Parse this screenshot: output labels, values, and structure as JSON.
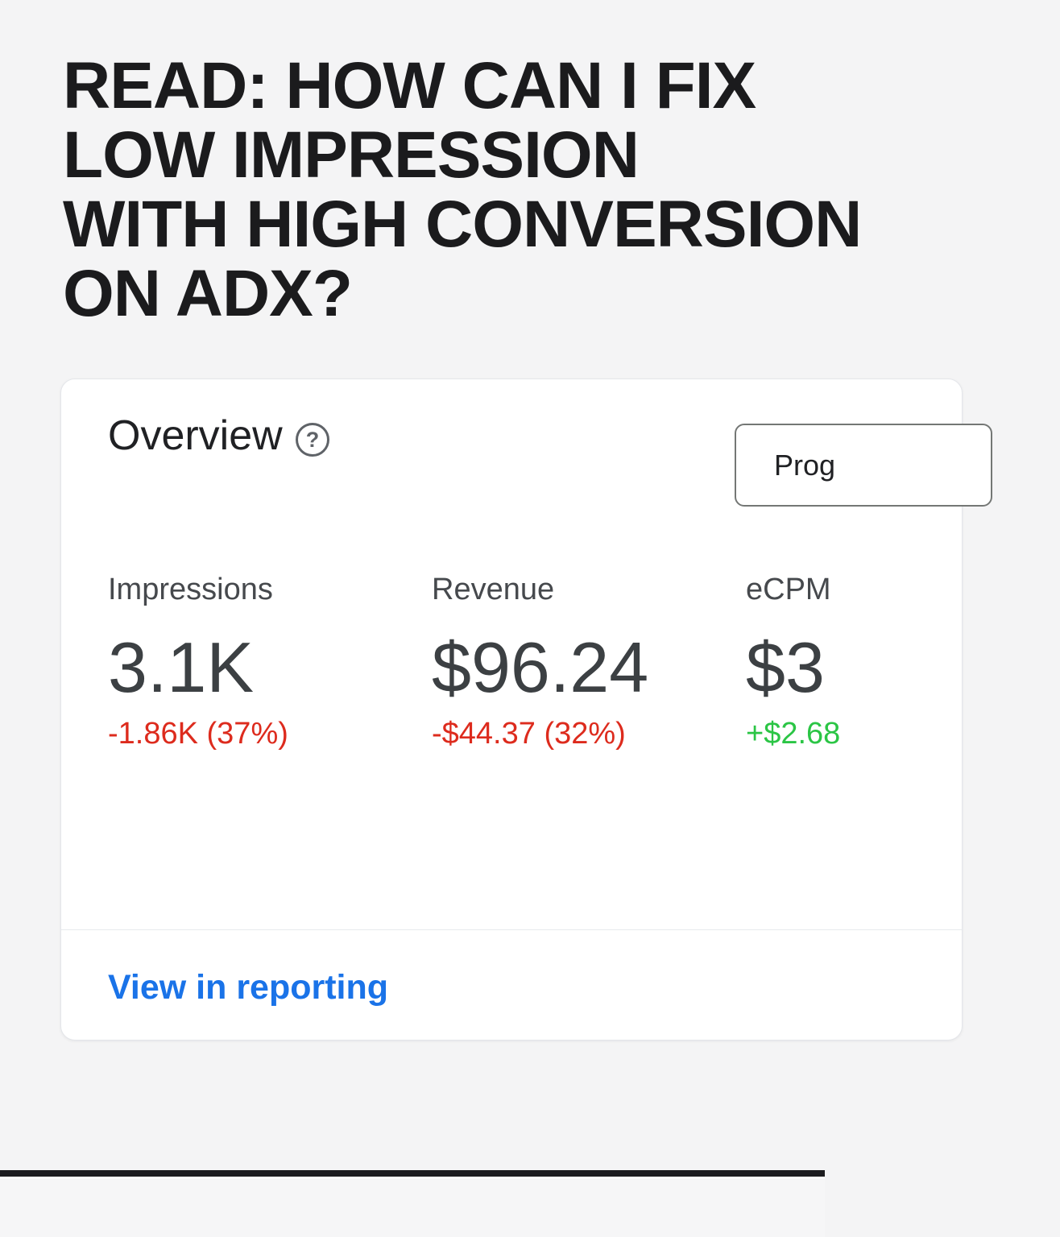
{
  "title": {
    "lines": [
      "READ: HOW CAN I FIX",
      "LOW IMPRESSION",
      "WITH HIGH CONVERSION",
      "ON ADX?"
    ]
  },
  "card": {
    "header": {
      "title": "Overview",
      "help_icon_glyph": "?",
      "button_label": "Prog"
    },
    "metrics": [
      {
        "label": "Impressions",
        "value": "3.1K",
        "delta": "-1.86K (37%)",
        "trend": "down"
      },
      {
        "label": "Revenue",
        "value": "$96.24",
        "delta": "-$44.37 (32%)",
        "trend": "down"
      },
      {
        "label": "eCPM",
        "value": "$3",
        "delta": "+$2.68",
        "trend": "up"
      }
    ],
    "footer": {
      "link_label": "View in reporting"
    }
  },
  "colors": {
    "page_bg": "#f4f4f5",
    "title_text": "#1b1b1d",
    "card_border": "#e4e6ea",
    "text_primary": "#202124",
    "text_secondary": "#46494d",
    "value_text": "#3c4043",
    "icon_gray": "#5f6368",
    "button_border": "#747775",
    "negative": "#dd2b1d",
    "positive": "#2bc545",
    "divider": "#e8eaed",
    "link": "#1a73e8",
    "separator": "#1d1d20"
  }
}
